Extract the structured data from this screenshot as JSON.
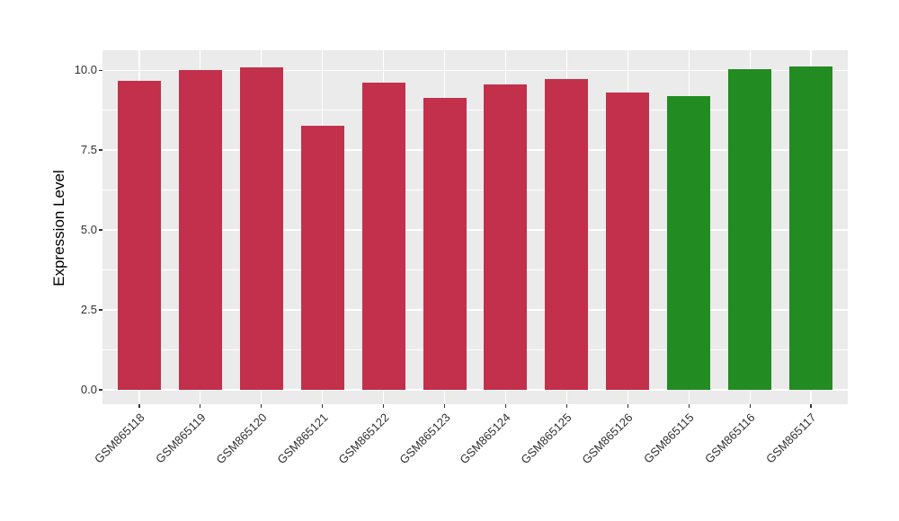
{
  "chart_data": {
    "type": "bar",
    "title": "",
    "ylabel": "Expression Level",
    "xlabel": "",
    "categories": [
      "GSM865118",
      "GSM865119",
      "GSM865120",
      "GSM865121",
      "GSM865122",
      "GSM865123",
      "GSM865124",
      "GSM865125",
      "GSM865126",
      "GSM865115",
      "GSM865116",
      "GSM865117"
    ],
    "values": [
      9.67,
      10.01,
      10.09,
      8.27,
      9.61,
      9.15,
      9.55,
      9.72,
      9.31,
      9.18,
      10.04,
      10.12
    ],
    "groups": [
      "group1",
      "group1",
      "group1",
      "group1",
      "group1",
      "group1",
      "group1",
      "group1",
      "group1",
      "group2",
      "group2",
      "group2"
    ],
    "palette": {
      "group1": "#C2304C",
      "group2": "#228C22"
    },
    "ylim": [
      -0.45,
      10.63
    ],
    "yticks": [
      0,
      2.5,
      5,
      7.5,
      10
    ],
    "ytick_labels": [
      "0.0",
      "2.5",
      "5.0",
      "7.5",
      "10.0"
    ],
    "minor_yticks": [
      1.25,
      3.75,
      6.25,
      8.75
    ],
    "x_tick_rotation_deg": 45,
    "grid": "major and minor horizontal, major vertical at category centers",
    "legend_position": "none",
    "colors": {
      "panel_background": "#EBEBEB",
      "figure_background": "#FFFFFF",
      "grid": "#FFFFFF",
      "axis_text": "#303030",
      "axis_title": "#000000",
      "tick_marks": "#333333"
    }
  }
}
